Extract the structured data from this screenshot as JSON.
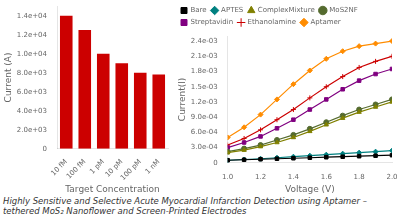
{
  "title": "Highly Sensitive and Selective Acute Myocardial Infarction Detection using Aptamer –tethered MoS₂ Nanoflower and Screen-Printed Electrodes",
  "chart_data": [
    {
      "type": "bar",
      "categories": [
        "10 fM",
        "100 fM",
        "1 pM",
        "10 pM",
        "100 pM",
        "1 nM"
      ],
      "values": [
        14000,
        12500,
        10000,
        9000,
        8000,
        7800
      ],
      "color": "#cc0000",
      "xlabel": "Target Concentration",
      "ylabel": "Current (A)",
      "ylim": [
        0,
        15000
      ],
      "yticks": [
        0,
        {
          "value": 2000,
          "label": "2.0e+03"
        },
        {
          "value": 4000,
          "label": "4.0e+03"
        },
        {
          "value": 6000,
          "label": "6.0e+03"
        },
        {
          "value": 8000,
          "label": "8.0e+03"
        },
        {
          "value": 10000,
          "label": "1.0e+04"
        },
        {
          "value": 12000,
          "label": "1.2e+04"
        },
        {
          "value": 14000,
          "label": "1.4e+04"
        }
      ],
      "grid": false
    },
    {
      "type": "line",
      "xlabel": "Voltage (V)",
      "ylabel": "Current(I)",
      "x": [
        1.0,
        1.1,
        1.2,
        1.3,
        1.4,
        1.5,
        1.6,
        1.7,
        1.8,
        1.9,
        2.0
      ],
      "xlim": [
        1.0,
        2.0
      ],
      "xticks": [
        {
          "value": 1.0,
          "label": "1.0"
        },
        1.2,
        1.4,
        1.6,
        1.8,
        {
          "value": 2.0,
          "label": "2.0"
        }
      ],
      "ylim": [
        0,
        0.0025
      ],
      "yticks": [
        0,
        {
          "value": 0.0003,
          "label": "3.0e-04"
        },
        {
          "value": 0.0006,
          "label": "6.0e-04"
        },
        {
          "value": 0.0009,
          "label": "9.0e-04"
        },
        {
          "value": 0.0012,
          "label": "1.2e-03"
        },
        {
          "value": 0.0015,
          "label": "1.5e-03"
        },
        {
          "value": 0.0018,
          "label": "1.8e-03"
        },
        {
          "value": 0.0021,
          "label": "2.1e-03"
        },
        {
          "value": 0.0024,
          "label": "2.4e-03"
        }
      ],
      "grid": false,
      "legend": "upper left",
      "series": [
        {
          "name": "Bare",
          "color": "#000000",
          "marker": "square",
          "values": [
            5e-05,
            6e-05,
            7e-05,
            8e-05,
            9e-05,
            0.0001,
            0.00011,
            0.00012,
            0.00013,
            0.00014,
            0.00015
          ]
        },
        {
          "name": "APTES",
          "color": "#008080",
          "marker": "diamond",
          "values": [
            5e-05,
            6.5e-05,
            8e-05,
            0.0001,
            0.00012,
            0.00014,
            0.00016,
            0.00018,
            0.0002,
            0.00022,
            0.00024
          ]
        },
        {
          "name": "ComplexMixture",
          "color": "#808000",
          "marker": "triangle",
          "values": [
            0.0002,
            0.00025,
            0.00032,
            0.0004,
            0.0005,
            0.00062,
            0.00075,
            0.00088,
            0.001,
            0.0011,
            0.0012
          ]
        },
        {
          "name": "MoS2NF",
          "color": "#556b2f",
          "marker": "circle",
          "values": [
            0.00022,
            0.00028,
            0.00035,
            0.00045,
            0.00055,
            0.00067,
            0.0008,
            0.00093,
            0.00105,
            0.00115,
            0.00125
          ]
        },
        {
          "name": "Streptavidin",
          "color": "#800080",
          "marker": "square",
          "values": [
            0.0003,
            0.0004,
            0.00052,
            0.00068,
            0.00085,
            0.00105,
            0.00125,
            0.00145,
            0.00162,
            0.00175,
            0.00185
          ]
        },
        {
          "name": "Ethanolamine",
          "color": "#cc0000",
          "marker": "plus",
          "values": [
            0.00035,
            0.00048,
            0.00065,
            0.00085,
            0.00105,
            0.00128,
            0.0015,
            0.0017,
            0.00188,
            0.002,
            0.0021
          ]
        },
        {
          "name": "Aptamer",
          "color": "#ff8c00",
          "marker": "diamond",
          "values": [
            0.0005,
            0.0007,
            0.00095,
            0.00125,
            0.00155,
            0.00182,
            0.00205,
            0.0022,
            0.0023,
            0.00235,
            0.0024
          ]
        }
      ]
    }
  ]
}
